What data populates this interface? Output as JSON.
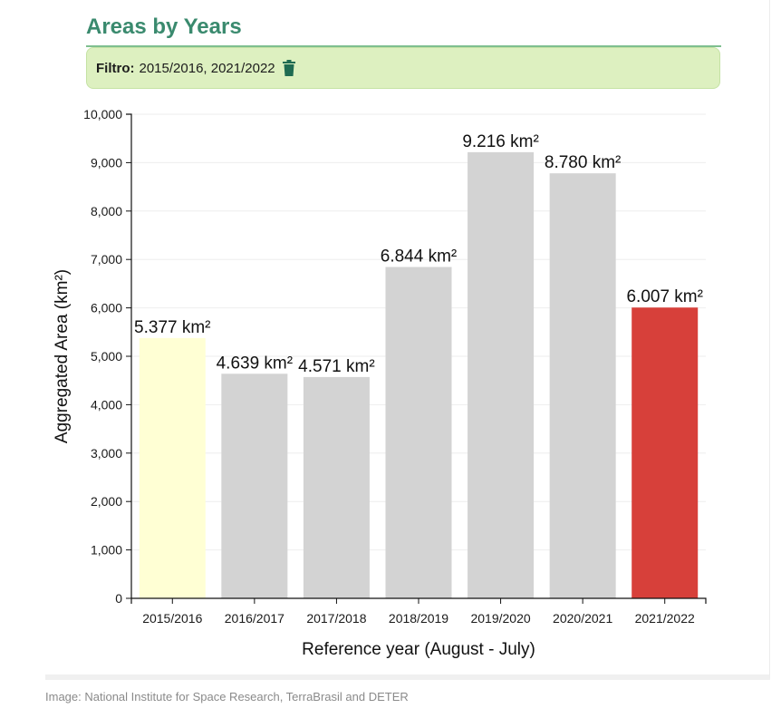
{
  "header": {
    "title": "Areas by Years"
  },
  "filter": {
    "label": "Filtro:",
    "value": "2015/2016, 2021/2022",
    "icon": "trash-icon"
  },
  "caption": "Image: National Institute for Space Research, TerraBrasil and DETER",
  "chart_data": {
    "type": "bar",
    "title": "",
    "xlabel": "Reference year (August - July)",
    "ylabel": "Aggregated Area (km²)",
    "ylim": [
      0,
      10000
    ],
    "yticks": [
      0,
      1000,
      2000,
      3000,
      4000,
      5000,
      6000,
      7000,
      8000,
      9000,
      10000
    ],
    "ytick_labels": [
      "0",
      "1,000",
      "2,000",
      "3,000",
      "4,000",
      "5,000",
      "6,000",
      "7,000",
      "8,000",
      "9,000",
      "10,000"
    ],
    "grid": true,
    "categories": [
      "2015/2016",
      "2016/2017",
      "2017/2018",
      "2018/2019",
      "2019/2020",
      "2020/2021",
      "2021/2022"
    ],
    "values": [
      5377,
      4639,
      4571,
      6844,
      9216,
      8780,
      6007
    ],
    "data_labels": [
      "5.377 km²",
      "4.639 km²",
      "4.571 km²",
      "6.844 km²",
      "9.216 km²",
      "8.780 km²",
      "6.007 km²"
    ],
    "colors": [
      "#ffffd4",
      "#d3d3d3",
      "#d3d3d3",
      "#d3d3d3",
      "#d3d3d3",
      "#d3d3d3",
      "#d7403a"
    ]
  }
}
